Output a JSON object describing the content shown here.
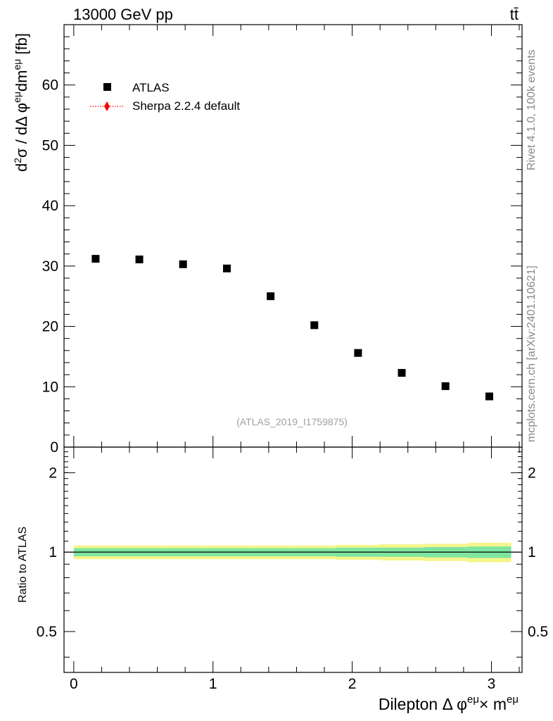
{
  "header": {
    "energy_label": "13000 GeV pp",
    "process_label": "tt̄"
  },
  "side_text": {
    "rivet_info": "Rivet 4.1.0,  100k events",
    "source_info": "mcplots.cern.ch [arXiv:2401.10621]"
  },
  "watermark": "(ATLAS_2019_I1759875)",
  "chart_data": {
    "type": "scatter",
    "main": {
      "ylabel": "d²σ / dΔ φ^eμ dm^eμ [fb]",
      "ylim": [
        0,
        70
      ],
      "yticks": [
        0,
        10,
        20,
        30,
        40,
        50,
        60
      ],
      "series": [
        {
          "name": "ATLAS",
          "marker": "square",
          "color": "#000000",
          "x": [
            0.157,
            0.471,
            0.785,
            1.1,
            1.414,
            1.728,
            2.042,
            2.356,
            2.67,
            2.985
          ],
          "y": [
            31.2,
            31.1,
            30.3,
            29.6,
            25.0,
            20.2,
            15.6,
            12.3,
            10.1,
            8.4
          ]
        },
        {
          "name": "Sherpa 2.2.4 default",
          "marker": "diamond",
          "line": "dotted",
          "color": "#ff0000",
          "x": [],
          "y": []
        }
      ]
    },
    "ratio": {
      "ylabel": "Ratio to ATLAS",
      "yticks": [
        0.5,
        1,
        2
      ],
      "ylim": [
        0.35,
        2.5
      ],
      "yscale": "log",
      "reference": 1,
      "bin_edges": [
        0,
        0.314,
        0.628,
        0.942,
        1.257,
        1.571,
        1.885,
        2.199,
        2.513,
        2.827,
        3.142
      ],
      "band_inner": [
        0.035,
        0.035,
        0.035,
        0.035,
        0.035,
        0.035,
        0.04,
        0.04,
        0.045,
        0.05
      ],
      "band_outer": [
        0.06,
        0.06,
        0.06,
        0.06,
        0.06,
        0.06,
        0.065,
        0.07,
        0.075,
        0.085
      ],
      "inner_color": "#7ee6a0",
      "outer_color": "#f5f58a"
    },
    "xlabel": "Dilepton Δ φ^eμ× m^eμ",
    "xlim": [
      -0.07,
      3.22
    ],
    "xticks": [
      0,
      1,
      2,
      3
    ]
  }
}
